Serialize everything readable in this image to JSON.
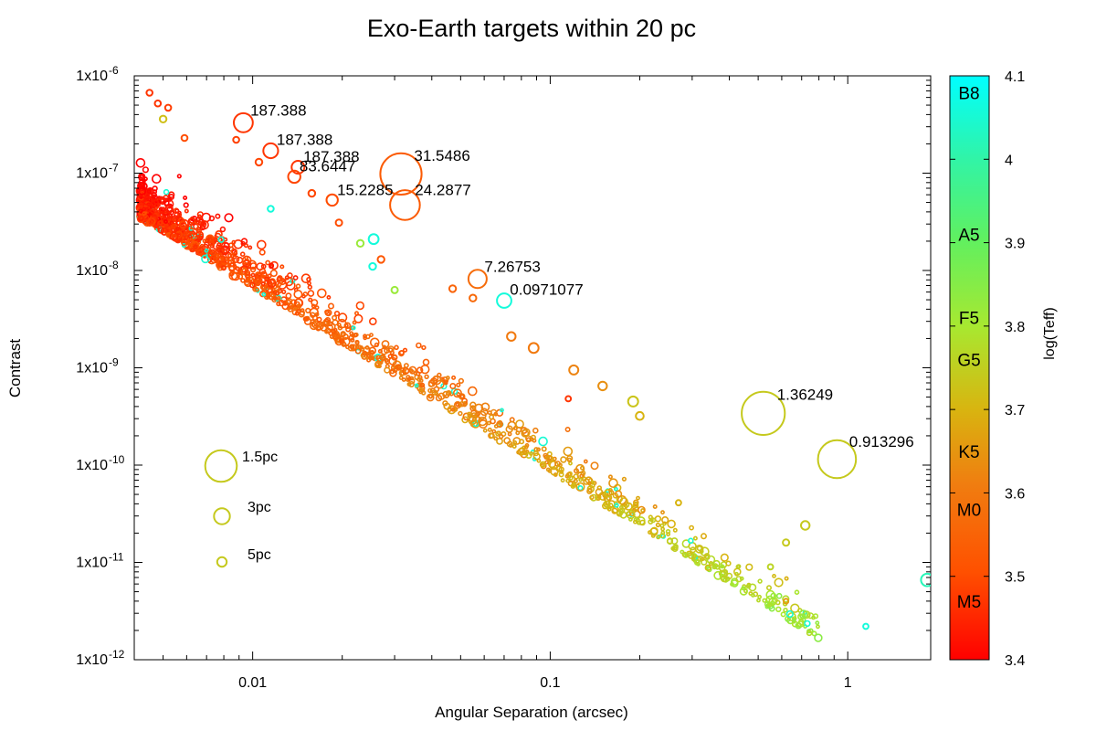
{
  "chart_data": {
    "type": "scatter",
    "title": "Exo-Earth targets within 20 pc",
    "xlabel": "Angular Separation (arcsec)",
    "ylabel": "Contrast",
    "xscale": "log",
    "yscale": "log",
    "xlim": [
      0.004,
      1.9
    ],
    "ylim": [
      1e-12,
      1e-06
    ],
    "x_ticks": [
      {
        "value": 0.01,
        "label": "0.01"
      },
      {
        "value": 0.1,
        "label": "0.1"
      },
      {
        "value": 1,
        "label": "1"
      }
    ],
    "y_ticks": [
      {
        "value": 1e-12,
        "label": "1x10",
        "exp": "-12"
      },
      {
        "value": 1e-11,
        "label": "1x10",
        "exp": "-11"
      },
      {
        "value": 1e-10,
        "label": "1x10",
        "exp": "-10"
      },
      {
        "value": 1e-09,
        "label": "1x10",
        "exp": "-9"
      },
      {
        "value": 1e-08,
        "label": "1x10",
        "exp": "-8"
      },
      {
        "value": 1e-07,
        "label": "1x10",
        "exp": "-7"
      },
      {
        "value": 1e-06,
        "label": "1x10",
        "exp": "-6"
      }
    ],
    "colorbar": {
      "label": "log(Teff)",
      "range": [
        3.4,
        4.1
      ],
      "ticks": [
        3.4,
        3.5,
        3.6,
        3.7,
        3.8,
        3.9,
        4,
        4.1
      ],
      "tick_labels": [
        "3.4",
        "3.5",
        "3.6",
        "3.7",
        "3.8",
        "3.9",
        "4",
        "4.1"
      ],
      "colors": [
        "#ff0000",
        "#ff5500",
        "#f08010",
        "#d8b010",
        "#b8e020",
        "#66ee55",
        "#30f0a0",
        "#00ffff"
      ],
      "spectral_classes": [
        {
          "name": "B8",
          "logTeff": 4.08
        },
        {
          "name": "A5",
          "logTeff": 3.91
        },
        {
          "name": "F5",
          "logTeff": 3.81
        },
        {
          "name": "G5",
          "logTeff": 3.76
        },
        {
          "name": "K5",
          "logTeff": 3.65
        },
        {
          "name": "M0",
          "logTeff": 3.58
        },
        {
          "name": "M5",
          "logTeff": 3.47
        }
      ]
    },
    "size_legend": [
      {
        "label": "1.5pc",
        "distance_pc": 1.5
      },
      {
        "label": "3pc",
        "distance_pc": 3
      },
      {
        "label": "5pc",
        "distance_pc": 5
      }
    ],
    "annotated_points": [
      {
        "x": 0.0093,
        "y": 3.3e-07,
        "logTeff": 3.47,
        "distance_pc": 2.5,
        "label": "187.388"
      },
      {
        "x": 0.0115,
        "y": 1.7e-07,
        "logTeff": 3.47,
        "distance_pc": 3.2,
        "label": "187.388"
      },
      {
        "x": 0.0142,
        "y": 1.15e-07,
        "logTeff": 3.47,
        "distance_pc": 3.7,
        "label": "187.388"
      },
      {
        "x": 0.0138,
        "y": 9.2e-08,
        "logTeff": 3.49,
        "distance_pc": 3.9,
        "label": "83.6447"
      },
      {
        "x": 0.0315,
        "y": 9.8e-08,
        "logTeff": 3.53,
        "distance_pc": 1.15,
        "label": "31.5486"
      },
      {
        "x": 0.0325,
        "y": 4.7e-08,
        "logTeff": 3.53,
        "distance_pc": 1.6,
        "label": "24.2877"
      },
      {
        "x": 0.0185,
        "y": 5.3e-08,
        "logTeff": 3.5,
        "distance_pc": 4.2,
        "label": "15.2285"
      },
      {
        "x": 0.057,
        "y": 8.2e-09,
        "logTeff": 3.57,
        "distance_pc": 2.6,
        "label": "7.26753"
      },
      {
        "x": 0.07,
        "y": 4.9e-09,
        "logTeff": 4.06,
        "distance_pc": 3.3,
        "label": "0.0971077"
      },
      {
        "x": 0.52,
        "y": 3.4e-10,
        "logTeff": 3.74,
        "distance_pc": 1.1,
        "label": "1.36249"
      },
      {
        "x": 0.92,
        "y": 1.15e-10,
        "logTeff": 3.74,
        "distance_pc": 1.25,
        "label": "0.913296"
      }
    ],
    "highlighted_points": [
      {
        "x": 0.0255,
        "y": 2.1e-08,
        "logTeff": 4.06,
        "distance_pc": 4.8
      },
      {
        "x": 0.0253,
        "y": 1.1e-08,
        "logTeff": 4.06,
        "distance_pc": 7
      },
      {
        "x": 0.0115,
        "y": 4.3e-08,
        "logTeff": 4.06,
        "distance_pc": 8
      },
      {
        "x": 1.85,
        "y": 6.6e-12,
        "logTeff": 4.02,
        "distance_pc": 3.8
      },
      {
        "x": 1.15,
        "y": 2.2e-12,
        "logTeff": 4.06,
        "distance_pc": 9
      },
      {
        "x": 0.19,
        "y": 4.5e-10,
        "logTeff": 3.73,
        "distance_pc": 4.7
      },
      {
        "x": 0.074,
        "y": 2.1e-09,
        "logTeff": 3.6,
        "distance_pc": 5.5
      },
      {
        "x": 0.088,
        "y": 1.6e-09,
        "logTeff": 3.6,
        "distance_pc": 4.8
      },
      {
        "x": 0.12,
        "y": 9.5e-10,
        "logTeff": 3.62,
        "distance_pc": 5.2
      },
      {
        "x": 0.15,
        "y": 6.5e-10,
        "logTeff": 3.64,
        "distance_pc": 5.5
      },
      {
        "x": 0.2,
        "y": 3.2e-10,
        "logTeff": 3.7,
        "distance_pc": 6
      },
      {
        "x": 0.72,
        "y": 2.4e-11,
        "logTeff": 3.74,
        "distance_pc": 5.5
      },
      {
        "x": 0.62,
        "y": 1.6e-11,
        "logTeff": 3.74,
        "distance_pc": 7.5
      },
      {
        "x": 0.0045,
        "y": 6.7e-07,
        "logTeff": 3.47,
        "distance_pc": 8
      },
      {
        "x": 0.0048,
        "y": 5.2e-07,
        "logTeff": 3.47,
        "distance_pc": 8
      },
      {
        "x": 0.0052,
        "y": 4.7e-07,
        "logTeff": 3.48,
        "distance_pc": 8
      },
      {
        "x": 0.005,
        "y": 3.6e-07,
        "logTeff": 3.72,
        "distance_pc": 7
      },
      {
        "x": 0.0059,
        "y": 2.3e-07,
        "logTeff": 3.5,
        "distance_pc": 8
      },
      {
        "x": 0.0088,
        "y": 2.2e-07,
        "logTeff": 3.48,
        "distance_pc": 8
      },
      {
        "x": 0.0105,
        "y": 1.3e-07,
        "logTeff": 3.49,
        "distance_pc": 7
      },
      {
        "x": 0.0158,
        "y": 6.2e-08,
        "logTeff": 3.49,
        "distance_pc": 7
      },
      {
        "x": 0.0195,
        "y": 3.1e-08,
        "logTeff": 3.5,
        "distance_pc": 7.5
      },
      {
        "x": 0.023,
        "y": 1.9e-08,
        "logTeff": 3.82,
        "distance_pc": 7
      },
      {
        "x": 0.027,
        "y": 1.3e-08,
        "logTeff": 3.52,
        "distance_pc": 7
      },
      {
        "x": 0.03,
        "y": 6.3e-09,
        "logTeff": 3.82,
        "distance_pc": 7.5
      },
      {
        "x": 0.047,
        "y": 6.5e-09,
        "logTeff": 3.55,
        "distance_pc": 7
      },
      {
        "x": 0.055,
        "y": 5.2e-09,
        "logTeff": 3.56,
        "distance_pc": 7
      },
      {
        "x": 0.115,
        "y": 4.8e-10,
        "logTeff": 3.47,
        "distance_pc": 9
      },
      {
        "x": 0.27,
        "y": 4.1e-11,
        "logTeff": 3.7,
        "distance_pc": 9
      },
      {
        "x": 0.55,
        "y": 9e-12,
        "logTeff": 3.76,
        "distance_pc": 9
      },
      {
        "x": 0.62,
        "y": 4e-12,
        "logTeff": 3.66,
        "distance_pc": 10
      }
    ],
    "background_population_note": "~1500 additional stars forming a diagonal band from (0.004 arcsec, 4e-8) to (1 arcsec, 1e-12), red/orange (M dwarfs) at small separations shifting to yellow-green (G/K stars) at larger separations."
  }
}
